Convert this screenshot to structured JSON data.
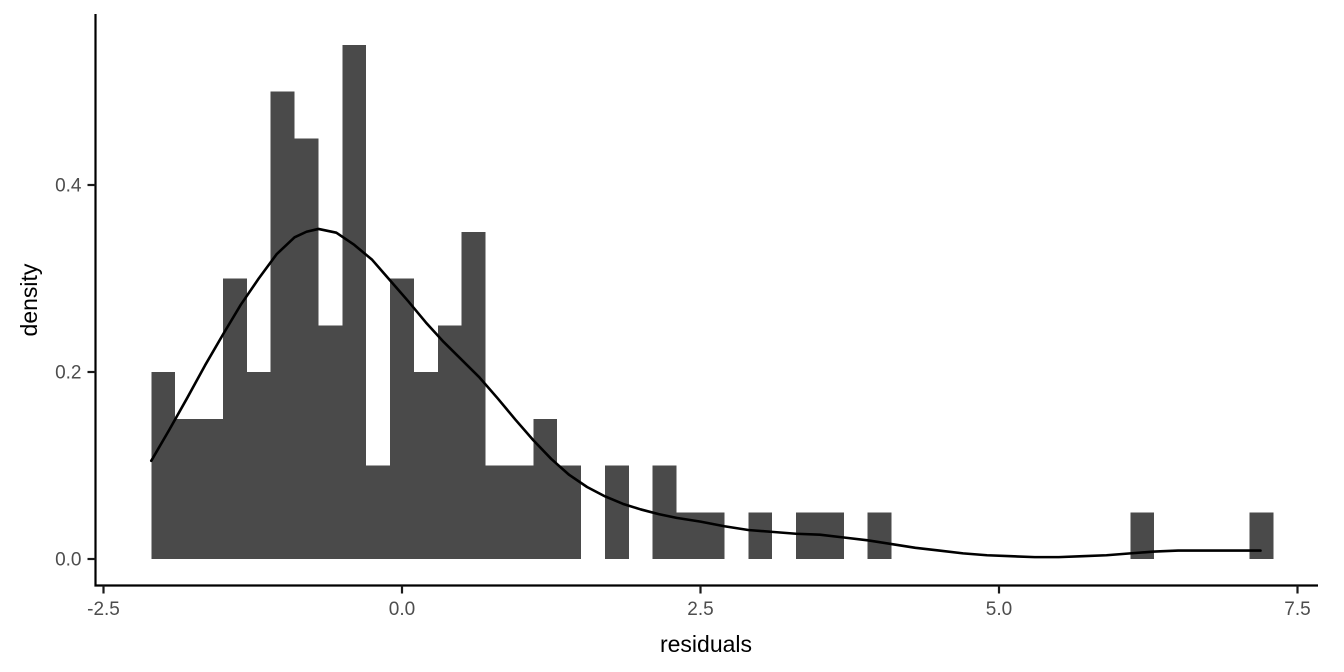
{
  "chart_data": {
    "type": "bar",
    "subtype": "density-histogram-with-kde",
    "title": "",
    "xlabel": "residuals",
    "ylabel": "density",
    "grid": false,
    "legend": "none",
    "bin_width": 0.2,
    "x_range": [
      -2.575,
      7.66
    ],
    "ylim": [
      0,
      0.582
    ],
    "x_ticks": {
      "values": [
        -2.5,
        0.0,
        2.5,
        5.0,
        7.5
      ],
      "labels": [
        "-2.5",
        "0.0",
        "2.5",
        "5.0",
        "7.5"
      ]
    },
    "y_ticks": {
      "values": [
        0.0,
        0.2,
        0.4
      ],
      "labels": [
        "0.0",
        "0.2",
        "0.4"
      ]
    },
    "bars": [
      {
        "center": -2.0,
        "density": 0.2
      },
      {
        "center": -1.8,
        "density": 0.15
      },
      {
        "center": -1.6,
        "density": 0.15
      },
      {
        "center": -1.4,
        "density": 0.3
      },
      {
        "center": -1.2,
        "density": 0.2
      },
      {
        "center": -1.0,
        "density": 0.5
      },
      {
        "center": -0.8,
        "density": 0.45
      },
      {
        "center": -0.6,
        "density": 0.25
      },
      {
        "center": -0.4,
        "density": 0.55
      },
      {
        "center": -0.2,
        "density": 0.1
      },
      {
        "center": 0.0,
        "density": 0.3
      },
      {
        "center": 0.2,
        "density": 0.2
      },
      {
        "center": 0.4,
        "density": 0.25
      },
      {
        "center": 0.6,
        "density": 0.35
      },
      {
        "center": 0.8,
        "density": 0.1
      },
      {
        "center": 1.0,
        "density": 0.1
      },
      {
        "center": 1.2,
        "density": 0.15
      },
      {
        "center": 1.4,
        "density": 0.1
      },
      {
        "center": 1.8,
        "density": 0.1
      },
      {
        "center": 2.2,
        "density": 0.1
      },
      {
        "center": 2.4,
        "density": 0.05
      },
      {
        "center": 2.6,
        "density": 0.05
      },
      {
        "center": 3.0,
        "density": 0.05
      },
      {
        "center": 3.4,
        "density": 0.05
      },
      {
        "center": 3.6,
        "density": 0.05
      },
      {
        "center": 4.0,
        "density": 0.05
      },
      {
        "center": 6.2,
        "density": 0.05
      },
      {
        "center": 7.2,
        "density": 0.05
      }
    ],
    "density_curve": {
      "x": [
        -2.1,
        -1.95,
        -1.8,
        -1.65,
        -1.5,
        -1.35,
        -1.2,
        -1.05,
        -0.9,
        -0.8,
        -0.7,
        -0.55,
        -0.4,
        -0.25,
        -0.1,
        0.05,
        0.2,
        0.35,
        0.5,
        0.65,
        0.8,
        0.95,
        1.1,
        1.25,
        1.4,
        1.55,
        1.7,
        1.85,
        2.0,
        2.15,
        2.3,
        2.5,
        2.7,
        2.9,
        3.1,
        3.3,
        3.5,
        3.7,
        3.9,
        4.1,
        4.3,
        4.5,
        4.7,
        4.9,
        5.1,
        5.3,
        5.5,
        5.7,
        5.9,
        6.1,
        6.3,
        6.5,
        6.7,
        6.9,
        7.05,
        7.19
      ],
      "y": [
        0.105,
        0.138,
        0.172,
        0.207,
        0.24,
        0.272,
        0.3,
        0.326,
        0.344,
        0.35,
        0.353,
        0.349,
        0.336,
        0.32,
        0.298,
        0.276,
        0.253,
        0.232,
        0.213,
        0.194,
        0.172,
        0.149,
        0.127,
        0.107,
        0.09,
        0.077,
        0.067,
        0.059,
        0.053,
        0.048,
        0.044,
        0.04,
        0.035,
        0.031,
        0.029,
        0.027,
        0.026,
        0.023,
        0.02,
        0.016,
        0.012,
        0.009,
        0.006,
        0.004,
        0.003,
        0.002,
        0.002,
        0.003,
        0.004,
        0.006,
        0.008,
        0.009,
        0.009,
        0.009,
        0.009,
        0.009
      ]
    },
    "colors": {
      "bar_fill": "#4A4A4A",
      "curve": "#000000",
      "axis_line": "#000000",
      "tick_mark": "#1A1A1A",
      "tick_label": "#4D4D4D",
      "axis_title": "#000000",
      "background": "#FFFFFF"
    }
  }
}
